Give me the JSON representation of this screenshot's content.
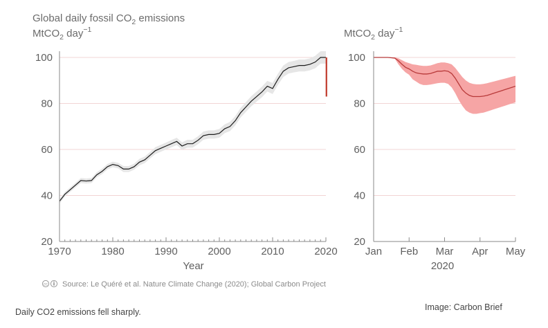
{
  "figure": {
    "title_main": "Global daily fossil CO",
    "title_sub": "2",
    "title_tail": " emissions",
    "source": "Source: Le Quéré et al. Nature Climate Change (2020); Global Carbon Project",
    "license_icon": "creative-commons-icon"
  },
  "caption": "Daily CO2 emissions fell sharply.",
  "credit": "Image: Carbon Brief",
  "colors": {
    "line": "#1c1c1c",
    "band": "#e6e6e6",
    "drop": "#c0392b",
    "red_line": "#b83a3a",
    "red_band": "#f6a5a5",
    "axis": "#8a8a8a",
    "grid": "#f2d4d4"
  },
  "chart_data": [
    {
      "type": "line",
      "ylabel": {
        "pre": "MtCO",
        "sub": "2",
        "mid": " day",
        "sup": "−1"
      },
      "xlabel": "Year",
      "xlim": [
        1970,
        2020
      ],
      "ylim": [
        20,
        105
      ],
      "yticks": [
        20,
        40,
        60,
        80,
        100
      ],
      "xticks": [
        1970,
        1980,
        1990,
        2000,
        2010,
        2020
      ],
      "x": [
        1970,
        1971,
        1972,
        1973,
        1974,
        1975,
        1976,
        1977,
        1978,
        1979,
        1980,
        1981,
        1982,
        1983,
        1984,
        1985,
        1986,
        1987,
        1988,
        1989,
        1990,
        1991,
        1992,
        1993,
        1994,
        1995,
        1996,
        1997,
        1998,
        1999,
        2000,
        2001,
        2002,
        2003,
        2004,
        2005,
        2006,
        2007,
        2008,
        2009,
        2010,
        2011,
        2012,
        2013,
        2014,
        2015,
        2016,
        2017,
        2018,
        2019,
        2020
      ],
      "y": [
        37.5,
        40.5,
        42.5,
        44.5,
        46.5,
        46.3,
        46.5,
        49,
        50.5,
        52.5,
        53.5,
        53,
        51.5,
        51.5,
        52.5,
        54.5,
        55.5,
        57.5,
        59.5,
        60.5,
        61.5,
        62.5,
        63.5,
        61.5,
        62.5,
        62.5,
        64,
        66,
        66.5,
        66.5,
        67,
        69,
        70,
        72.5,
        76,
        78.5,
        81,
        83,
        85,
        87.5,
        86.5,
        90.5,
        94,
        95.5,
        96,
        96.5,
        96.5,
        97,
        98,
        100,
        100
      ],
      "band": [
        1.0,
        1.0,
        1.0,
        1.0,
        1.1,
        1.1,
        1.1,
        1.1,
        1.2,
        1.2,
        1.2,
        1.2,
        1.3,
        1.3,
        1.3,
        1.4,
        1.4,
        1.4,
        1.5,
        1.5,
        1.5,
        1.6,
        1.6,
        1.6,
        1.7,
        1.7,
        1.7,
        1.8,
        1.8,
        1.8,
        1.9,
        1.9,
        2.0,
        2.0,
        2.1,
        2.1,
        2.2,
        2.2,
        2.3,
        2.3,
        2.4,
        2.4,
        2.5,
        2.5,
        2.5,
        2.6,
        2.6,
        2.6,
        2.7,
        2.7,
        2.7
      ],
      "drop": {
        "x": 2020.1,
        "y_from": 100,
        "y_to": 83
      }
    },
    {
      "type": "area",
      "ylabel": {
        "pre": "MtCO",
        "sub": "2",
        "mid": " day",
        "sup": "−1"
      },
      "xlabel": "2020",
      "xlim": [
        1,
        5
      ],
      "ylim": [
        20,
        105
      ],
      "yticks": [
        20,
        40,
        60,
        80,
        100
      ],
      "xtick_values": [
        1,
        2,
        3,
        4,
        5
      ],
      "xtick_labels": [
        "Jan",
        "Feb",
        "Mar",
        "Apr",
        "May"
      ],
      "x": [
        1.0,
        1.2,
        1.4,
        1.6,
        1.7,
        1.8,
        1.9,
        2.0,
        2.1,
        2.2,
        2.3,
        2.4,
        2.5,
        2.6,
        2.7,
        2.8,
        2.9,
        3.0,
        3.1,
        3.2,
        3.3,
        3.4,
        3.5,
        3.6,
        3.7,
        3.8,
        3.9,
        4.0,
        4.1,
        4.2,
        4.3,
        4.4,
        4.5,
        4.6,
        4.7,
        4.8,
        4.9,
        5.0
      ],
      "y": [
        100,
        100,
        100,
        99.7,
        98.5,
        97,
        95.7,
        95,
        94,
        93.3,
        93,
        92.8,
        92.8,
        93,
        93.5,
        94,
        94,
        94.2,
        94,
        93,
        91,
        88.5,
        86,
        84.5,
        83.5,
        83,
        83,
        83,
        83.2,
        83.5,
        84,
        84.5,
        85,
        85.5,
        86,
        86.5,
        87,
        87.5
      ],
      "lower": [
        100,
        100,
        100,
        99.4,
        97,
        95,
        93.5,
        92.5,
        90.5,
        89.5,
        88.5,
        88,
        88,
        88.2,
        88.5,
        88.8,
        89,
        89,
        88.5,
        87,
        84.5,
        81.5,
        79,
        77,
        76,
        75.5,
        75.5,
        75.8,
        76,
        76.5,
        77,
        77.5,
        78,
        78.5,
        79,
        79.5,
        80,
        80.5
      ],
      "upper": [
        100,
        100,
        100,
        100,
        99.6,
        98.8,
        98,
        97.5,
        97,
        96.8,
        96.5,
        96.3,
        96.3,
        96.5,
        97,
        97.5,
        97.8,
        97.8,
        97.5,
        97,
        95.5,
        93.5,
        91.5,
        90,
        89,
        88.5,
        88.3,
        88.3,
        88.5,
        88.8,
        89.2,
        89.6,
        90,
        90.4,
        90.8,
        91.2,
        91.6,
        92
      ]
    }
  ]
}
